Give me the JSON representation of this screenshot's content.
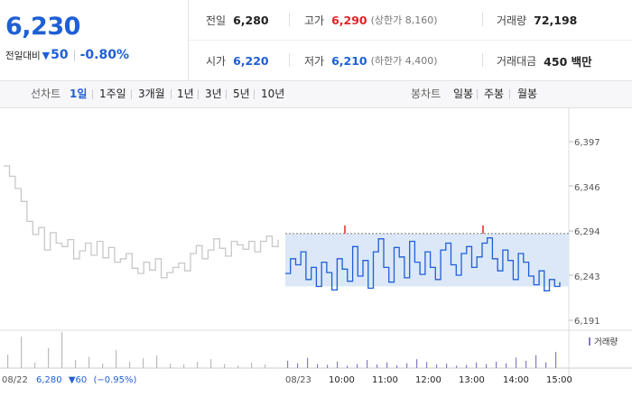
{
  "quote": {
    "price": "6,230",
    "change_label": "전일대비",
    "change_icon": "down-triangle-icon",
    "change_abs": "50",
    "change_pct": "-0.80%"
  },
  "summary": {
    "prev_close_label": "전일",
    "prev_close": "6,280",
    "high_label": "고가",
    "high": "6,290",
    "upper_limit": "(상한가 8,160)",
    "volume_label": "거래량",
    "volume": "72,198",
    "open_label": "시가",
    "open": "6,220",
    "low_label": "저가",
    "low": "6,210",
    "lower_limit": "(하한가 4,400)",
    "amount_label": "거래대금",
    "amount": "450 백만"
  },
  "toolbar": {
    "line_label": "선차트",
    "line_periods": [
      "1일",
      "1주일",
      "3개월",
      "1년",
      "3년",
      "5년",
      "10년"
    ],
    "active_period": "1일",
    "candle_label": "봉차트",
    "candle_periods": [
      "일봉",
      "주봉",
      "월봉"
    ]
  },
  "colors": {
    "up": "#e0252a",
    "down": "#1f5fd6",
    "prev_day_line": "#c8c8c8",
    "band_fill": "#dce8f8",
    "volume_bar": "#8a78c9"
  },
  "chart_data": {
    "type": "line",
    "y_ticks": [
      "6,397",
      "6,346",
      "6,294",
      "6,243",
      "6,191"
    ],
    "ylim": [
      6191,
      6397
    ],
    "y_tick_values": [
      6397,
      6346,
      6294,
      6243,
      6191
    ],
    "x_ticks": [
      "08/23",
      "10:00",
      "11:00",
      "12:00",
      "13:00",
      "14:00",
      "15:00"
    ],
    "volume_legend": "거래량",
    "prev_day_caption": {
      "date": "08/22",
      "price": "6,280",
      "change": "▼60",
      "pct": "(−0.95%)"
    },
    "series": [
      {
        "values": [
          6369,
          6357,
          6343,
          6328,
          6305,
          6290,
          6298,
          6272,
          6292,
          6280,
          6276,
          6284,
          6262,
          6271,
          6280,
          6266,
          6282,
          6263,
          6275,
          6258,
          6262,
          6268,
          6251,
          6245,
          6258,
          6249,
          6262,
          6240,
          6246,
          6252,
          6257,
          6248,
          6268,
          6277,
          6262,
          6272,
          6285,
          6274,
          6265,
          6282,
          6278,
          6273,
          6282,
          6270,
          6282,
          6288,
          6276,
          6284
        ]
      },
      {
        "values": [
          6245,
          6262,
          6255,
          6270,
          6238,
          6252,
          6230,
          6258,
          6246,
          6226,
          6262,
          6250,
          6236,
          6276,
          6242,
          6260,
          6228,
          6270,
          6285,
          6252,
          6235,
          6275,
          6264,
          6240,
          6282,
          6258,
          6244,
          6270,
          6252,
          6238,
          6272,
          6280,
          6255,
          6243,
          6268,
          6276,
          6252,
          6264,
          6280,
          6286,
          6262,
          6248,
          6272,
          6260,
          6238,
          6268,
          6258,
          6242,
          6232,
          6248,
          6225,
          6238,
          6230,
          6235
        ]
      }
    ],
    "volume_prev_day": [
      30,
      70,
      12,
      45,
      80,
      18,
      25,
      10,
      40,
      14,
      22,
      28,
      10,
      8,
      14,
      20,
      9,
      6,
      12,
      8
    ],
    "volume": [
      18,
      12,
      25,
      10,
      8,
      16,
      6,
      10,
      20,
      9,
      14,
      7,
      12,
      22,
      15,
      9,
      11,
      6,
      8,
      14,
      10,
      16,
      12,
      26,
      18,
      32,
      14,
      40
    ]
  }
}
